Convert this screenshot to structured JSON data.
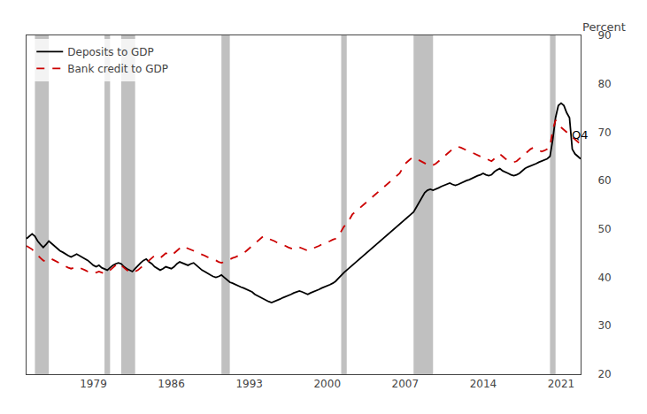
{
  "chart_data": {
    "type": "line",
    "ylabel": "Percent",
    "xlim": [
      1973.0,
      2022.75
    ],
    "xticks": [
      1979,
      1986,
      1993,
      2000,
      2007,
      2014,
      2021
    ],
    "ylim": [
      20,
      90
    ],
    "yticks": [
      20,
      30,
      40,
      50,
      60,
      70,
      80,
      90
    ],
    "grid": false,
    "legend": "upper left",
    "recession_bands": {
      "color": "#c0c0c0",
      "ranges": [
        [
          1973.75,
          1975.0
        ],
        [
          1980.0,
          1980.5
        ],
        [
          1981.5,
          1982.75
        ],
        [
          1990.5,
          1991.25
        ],
        [
          2001.25,
          2001.75
        ],
        [
          2007.75,
          2009.5
        ],
        [
          2020.0,
          2020.5
        ]
      ]
    },
    "annotations": [
      {
        "text": "Q4",
        "x": 2021.8,
        "y": 69.5
      }
    ],
    "x": [
      1973.0,
      1973.25,
      1973.5,
      1973.75,
      1974.0,
      1974.25,
      1974.5,
      1974.75,
      1975.0,
      1975.25,
      1975.5,
      1975.75,
      1976.0,
      1976.25,
      1976.5,
      1976.75,
      1977.0,
      1977.25,
      1977.5,
      1977.75,
      1978.0,
      1978.25,
      1978.5,
      1978.75,
      1979.0,
      1979.25,
      1979.5,
      1979.75,
      1980.0,
      1980.25,
      1980.5,
      1980.75,
      1981.0,
      1981.25,
      1981.5,
      1981.75,
      1982.0,
      1982.25,
      1982.5,
      1982.75,
      1983.0,
      1983.25,
      1983.5,
      1983.75,
      1984.0,
      1984.25,
      1984.5,
      1984.75,
      1985.0,
      1985.25,
      1985.5,
      1985.75,
      1986.0,
      1986.25,
      1986.5,
      1986.75,
      1987.0,
      1987.25,
      1987.5,
      1987.75,
      1988.0,
      1988.25,
      1988.5,
      1988.75,
      1989.0,
      1989.25,
      1989.5,
      1989.75,
      1990.0,
      1990.25,
      1990.5,
      1990.75,
      1991.0,
      1991.25,
      1991.5,
      1991.75,
      1992.0,
      1992.25,
      1992.5,
      1992.75,
      1993.0,
      1993.25,
      1993.5,
      1993.75,
      1994.0,
      1994.25,
      1994.5,
      1994.75,
      1995.0,
      1995.25,
      1995.5,
      1995.75,
      1996.0,
      1996.25,
      1996.5,
      1996.75,
      1997.0,
      1997.25,
      1997.5,
      1997.75,
      1998.0,
      1998.25,
      1998.5,
      1998.75,
      1999.0,
      1999.25,
      1999.5,
      1999.75,
      2000.0,
      2000.25,
      2000.5,
      2000.75,
      2001.0,
      2001.25,
      2001.5,
      2001.75,
      2002.0,
      2002.25,
      2002.5,
      2002.75,
      2003.0,
      2003.25,
      2003.5,
      2003.75,
      2004.0,
      2004.25,
      2004.5,
      2004.75,
      2005.0,
      2005.25,
      2005.5,
      2005.75,
      2006.0,
      2006.25,
      2006.5,
      2006.75,
      2007.0,
      2007.25,
      2007.5,
      2007.75,
      2008.0,
      2008.25,
      2008.5,
      2008.75,
      2009.0,
      2009.25,
      2009.5,
      2009.75,
      2010.0,
      2010.25,
      2010.5,
      2010.75,
      2011.0,
      2011.25,
      2011.5,
      2011.75,
      2012.0,
      2012.25,
      2012.5,
      2012.75,
      2013.0,
      2013.25,
      2013.5,
      2013.75,
      2014.0,
      2014.25,
      2014.5,
      2014.75,
      2015.0,
      2015.25,
      2015.5,
      2015.75,
      2016.0,
      2016.25,
      2016.5,
      2016.75,
      2017.0,
      2017.25,
      2017.5,
      2017.75,
      2018.0,
      2018.25,
      2018.5,
      2018.75,
      2019.0,
      2019.25,
      2019.5,
      2019.75,
      2020.0,
      2020.25,
      2020.5,
      2020.75,
      2021.0,
      2021.25,
      2021.5,
      2021.75,
      2022.0,
      2022.25,
      2022.5,
      2022.75
    ],
    "series": [
      {
        "name": "Deposits to GDP",
        "color": "#000000",
        "line_style": "solid",
        "values": [
          48.0,
          48.5,
          49.0,
          48.5,
          47.5,
          46.8,
          46.2,
          46.8,
          47.5,
          47.0,
          46.5,
          46.0,
          45.5,
          45.2,
          44.8,
          44.5,
          44.2,
          44.5,
          44.8,
          44.5,
          44.2,
          43.8,
          43.5,
          43.0,
          42.5,
          42.2,
          42.5,
          42.0,
          41.8,
          41.5,
          42.0,
          42.5,
          42.8,
          43.0,
          42.8,
          42.2,
          41.8,
          41.5,
          41.2,
          41.8,
          42.5,
          43.0,
          43.5,
          43.8,
          43.2,
          42.8,
          42.2,
          41.8,
          41.5,
          41.8,
          42.2,
          42.0,
          41.8,
          42.2,
          42.8,
          43.2,
          43.0,
          42.8,
          42.5,
          42.8,
          43.0,
          42.5,
          42.0,
          41.5,
          41.2,
          40.8,
          40.5,
          40.2,
          40.0,
          40.2,
          40.5,
          40.0,
          39.5,
          39.0,
          38.8,
          38.5,
          38.2,
          38.0,
          37.8,
          37.5,
          37.2,
          37.0,
          36.5,
          36.2,
          35.8,
          35.5,
          35.2,
          35.0,
          34.8,
          35.0,
          35.2,
          35.5,
          35.8,
          36.0,
          36.2,
          36.5,
          36.8,
          37.0,
          37.2,
          37.0,
          36.8,
          36.5,
          36.8,
          37.0,
          37.2,
          37.5,
          37.8,
          38.0,
          38.2,
          38.5,
          38.8,
          39.2,
          39.8,
          40.5,
          41.0,
          41.5,
          42.0,
          42.5,
          43.0,
          43.5,
          44.0,
          44.5,
          45.0,
          45.5,
          46.0,
          46.5,
          47.0,
          47.5,
          48.0,
          48.5,
          49.0,
          49.5,
          50.0,
          50.5,
          51.0,
          51.5,
          52.0,
          52.5,
          53.0,
          53.5,
          54.5,
          55.5,
          56.5,
          57.5,
          58.0,
          58.2,
          58.0,
          58.2,
          58.5,
          58.8,
          59.0,
          59.2,
          59.5,
          59.2,
          59.0,
          59.2,
          59.5,
          59.8,
          60.0,
          60.2,
          60.5,
          60.8,
          61.0,
          61.2,
          61.5,
          61.2,
          61.0,
          61.2,
          61.8,
          62.2,
          62.5,
          62.0,
          61.8,
          61.5,
          61.2,
          61.0,
          61.2,
          61.5,
          62.0,
          62.5,
          62.8,
          63.0,
          63.2,
          63.5,
          63.8,
          64.0,
          64.2,
          64.5,
          65.0,
          68.5,
          73.0,
          75.5,
          76.0,
          75.5,
          74.0,
          73.0,
          66.5,
          65.5,
          65.0,
          64.5
        ]
      },
      {
        "name": "Bank credit to GDP",
        "color": "#cc0000",
        "line_style": "dashed",
        "values": [
          46.5,
          46.2,
          45.8,
          45.2,
          44.5,
          44.0,
          43.5,
          43.2,
          43.5,
          43.8,
          43.5,
          43.2,
          42.8,
          42.5,
          42.2,
          42.0,
          41.8,
          42.0,
          42.2,
          42.0,
          41.8,
          41.5,
          41.2,
          41.0,
          40.8,
          41.0,
          41.2,
          41.0,
          40.8,
          41.0,
          41.5,
          42.0,
          42.5,
          43.0,
          42.5,
          42.0,
          41.5,
          41.2,
          41.0,
          41.2,
          41.5,
          42.0,
          42.5,
          43.0,
          43.5,
          44.0,
          44.5,
          44.2,
          44.0,
          44.5,
          45.0,
          44.8,
          44.5,
          45.0,
          45.5,
          46.0,
          46.5,
          46.2,
          46.0,
          45.8,
          45.5,
          45.2,
          45.0,
          44.8,
          44.5,
          44.2,
          44.0,
          43.8,
          43.5,
          43.2,
          43.0,
          43.2,
          43.5,
          43.8,
          44.0,
          44.2,
          44.5,
          44.8,
          45.0,
          45.5,
          46.0,
          46.5,
          47.0,
          47.5,
          48.0,
          48.5,
          48.2,
          48.0,
          47.8,
          47.5,
          47.2,
          47.0,
          46.8,
          46.5,
          46.2,
          46.0,
          45.8,
          46.0,
          46.2,
          46.0,
          45.8,
          45.5,
          45.8,
          46.0,
          46.2,
          46.5,
          46.8,
          47.0,
          47.2,
          47.5,
          47.8,
          48.0,
          48.5,
          49.5,
          50.5,
          51.0,
          52.0,
          53.0,
          53.5,
          54.0,
          54.5,
          55.0,
          55.5,
          56.0,
          56.5,
          57.0,
          57.5,
          58.0,
          58.5,
          59.0,
          59.5,
          60.0,
          60.5,
          61.0,
          61.5,
          62.5,
          63.5,
          64.0,
          64.5,
          64.8,
          64.5,
          64.2,
          63.8,
          63.5,
          63.2,
          63.0,
          63.2,
          63.5,
          64.0,
          64.5,
          65.0,
          65.5,
          66.0,
          66.5,
          66.8,
          67.0,
          66.8,
          66.5,
          66.2,
          66.0,
          65.8,
          65.5,
          65.2,
          65.0,
          64.8,
          64.5,
          64.2,
          64.0,
          64.5,
          65.0,
          65.5,
          65.0,
          64.5,
          64.2,
          64.0,
          63.8,
          64.0,
          64.5,
          65.0,
          65.5,
          66.0,
          66.5,
          66.8,
          66.5,
          66.2,
          66.0,
          66.2,
          66.5,
          67.0,
          70.5,
          72.5,
          71.5,
          71.0,
          70.5,
          70.0,
          69.5,
          69.0,
          68.5,
          68.0,
          67.5
        ]
      }
    ]
  }
}
